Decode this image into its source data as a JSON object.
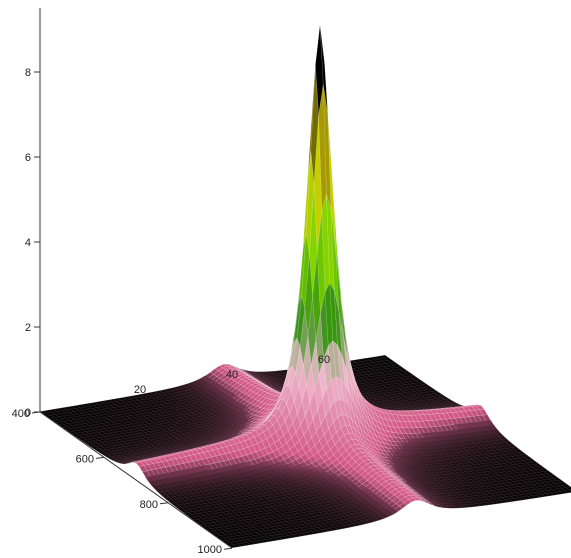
{
  "chart_data": {
    "type": "surface",
    "title": "",
    "z_axis": {
      "ticks": [
        0,
        2,
        4,
        6,
        8
      ],
      "range": [
        0,
        8.7
      ]
    },
    "y_axis": {
      "ticks": [
        400,
        600,
        800,
        1000
      ],
      "range": [
        400,
        1000
      ]
    },
    "x_axis": {
      "ticks": [
        20,
        40,
        60
      ],
      "range": [
        0,
        75
      ]
    },
    "peak": {
      "x": 40,
      "y": 700,
      "z": 8.7
    },
    "ridge_directions": [
      "x",
      "y"
    ],
    "colormap": [
      {
        "z": 0,
        "color": "#000000"
      },
      {
        "z": 0.4,
        "color": "#d35a85"
      },
      {
        "z": 2.0,
        "color": "#f0bcd0"
      },
      {
        "z": 3.2,
        "color": "#2f8f10"
      },
      {
        "z": 4.8,
        "color": "#7fd400"
      },
      {
        "z": 6.6,
        "color": "#dccc00"
      },
      {
        "z": 8.7,
        "color": "#000000"
      }
    ]
  }
}
